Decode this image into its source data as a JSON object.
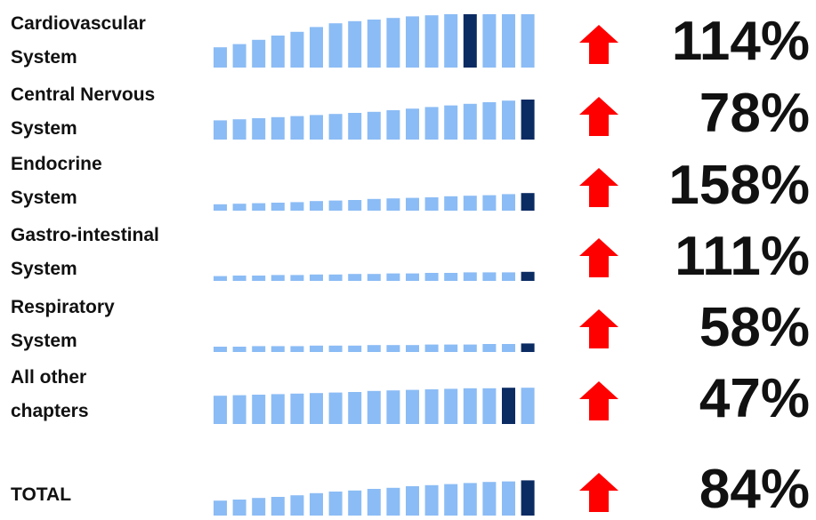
{
  "colors": {
    "bar_light": "#8bbcf5",
    "bar_dark": "#0b2b63",
    "arrow": "#ff0000"
  },
  "chart_data": {
    "type": "bar",
    "title": "",
    "xlabel": "",
    "ylabel": "",
    "rows": [
      {
        "label": "Cardiovascular\nSystem",
        "change": "114%",
        "direction": "up",
        "highlight_index": 13,
        "values": [
          0.38,
          0.44,
          0.52,
          0.6,
          0.67,
          0.76,
          0.83,
          0.87,
          0.9,
          0.93,
          0.96,
          0.98,
          1.0,
          1.0,
          1.0,
          1.0,
          1.0
        ]
      },
      {
        "label": "Central Nervous\nSystem",
        "change": "78%",
        "direction": "up",
        "highlight_index": 16,
        "values": [
          0.36,
          0.38,
          0.4,
          0.42,
          0.44,
          0.46,
          0.48,
          0.5,
          0.52,
          0.55,
          0.58,
          0.61,
          0.64,
          0.67,
          0.7,
          0.73,
          0.75
        ]
      },
      {
        "label": "Endocrine\nSystem",
        "change": "158%",
        "direction": "up",
        "highlight_index": 16,
        "values": [
          0.12,
          0.13,
          0.14,
          0.15,
          0.16,
          0.18,
          0.19,
          0.2,
          0.22,
          0.23,
          0.24,
          0.25,
          0.27,
          0.28,
          0.29,
          0.31,
          0.33
        ]
      },
      {
        "label": "Gastro-intestinal\nSystem",
        "change": "111%",
        "direction": "up",
        "highlight_index": 16,
        "values": [
          0.09,
          0.1,
          0.1,
          0.11,
          0.11,
          0.12,
          0.12,
          0.13,
          0.13,
          0.14,
          0.14,
          0.15,
          0.15,
          0.16,
          0.16,
          0.16,
          0.17
        ]
      },
      {
        "label": "Respiratory\nSystem",
        "change": "58%",
        "direction": "up",
        "highlight_index": 16,
        "values": [
          0.1,
          0.1,
          0.11,
          0.11,
          0.11,
          0.12,
          0.12,
          0.12,
          0.13,
          0.13,
          0.13,
          0.14,
          0.14,
          0.14,
          0.15,
          0.15,
          0.16
        ]
      },
      {
        "label": "All other\nchapters",
        "change": "47%",
        "direction": "up",
        "highlight_index": 15,
        "values": [
          0.53,
          0.54,
          0.55,
          0.56,
          0.57,
          0.58,
          0.59,
          0.6,
          0.62,
          0.63,
          0.64,
          0.65,
          0.66,
          0.67,
          0.67,
          0.68,
          0.68
        ]
      },
      {
        "label": "TOTAL",
        "change": "84%",
        "direction": "up",
        "highlight_index": 16,
        "values": [
          0.28,
          0.3,
          0.33,
          0.35,
          0.38,
          0.42,
          0.45,
          0.47,
          0.5,
          0.52,
          0.55,
          0.57,
          0.59,
          0.61,
          0.63,
          0.64,
          0.66
        ]
      }
    ]
  }
}
